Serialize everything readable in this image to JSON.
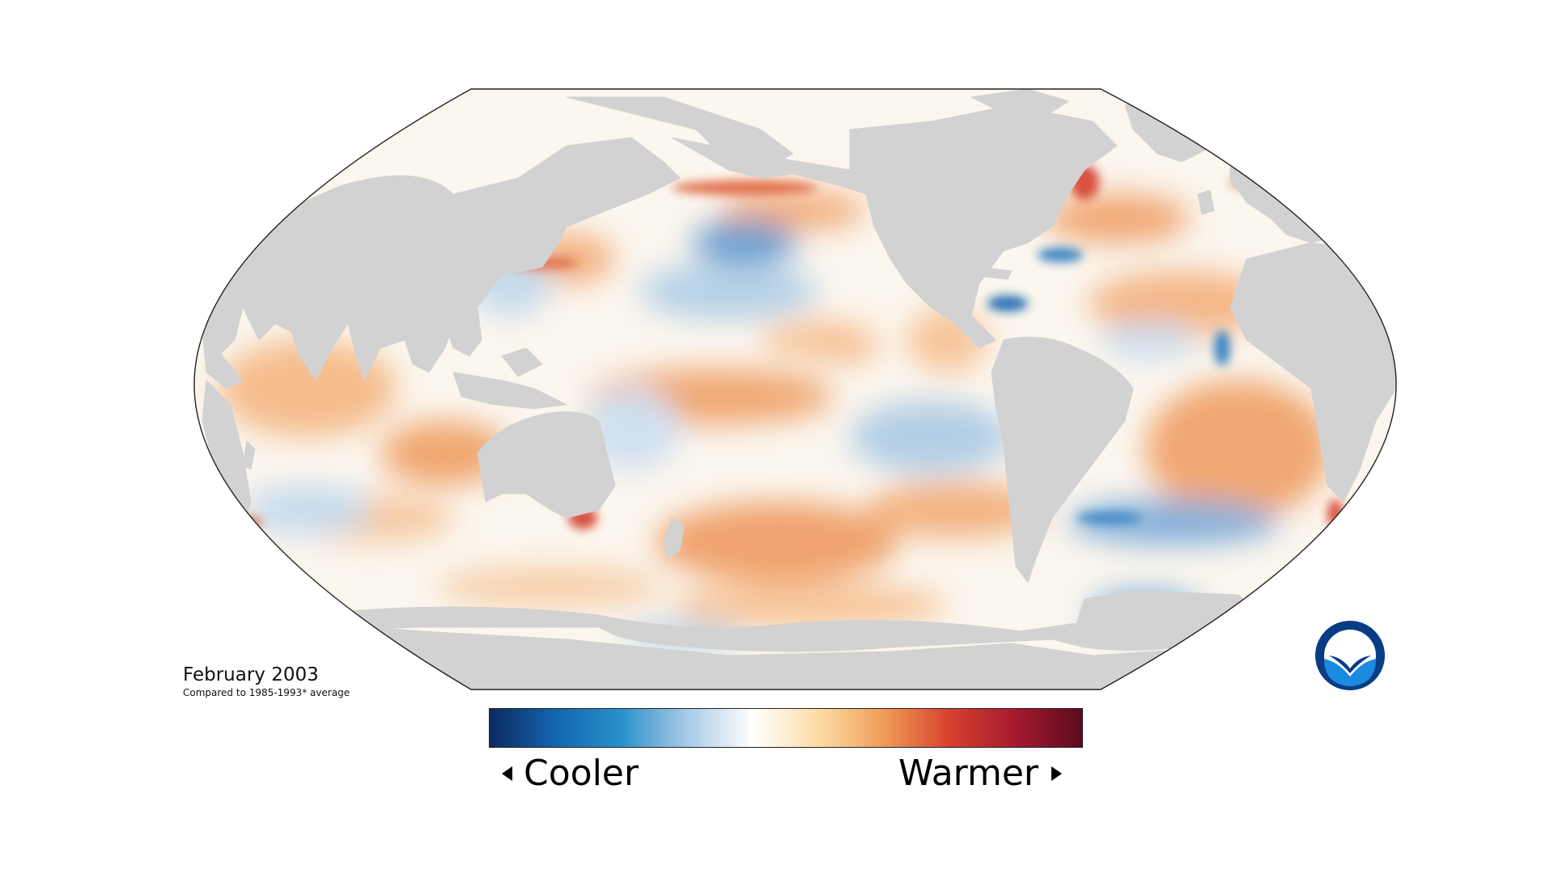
{
  "caption": {
    "date": "February 2003",
    "subtitle": "Compared to 1985-1993* average"
  },
  "legend": {
    "cooler_label": "Cooler",
    "warmer_label": "Warmer",
    "gradient_colors": [
      "#0b2b62",
      "#1466ae",
      "#2a91cd",
      "#a9cbe6",
      "#ffffff",
      "#fddca4",
      "#f19a55",
      "#d6402f",
      "#a31a2d",
      "#5e0a20"
    ]
  },
  "logo": {
    "text": "NOAA",
    "ring_color": "#0a3c86",
    "center_color": "#1b8be0"
  },
  "colors": {
    "land": "#d2d2d2",
    "ocean_neutral": "#fbf6ee",
    "warm_anomaly": "#f2a56a",
    "cool_anomaly": "#6fa6d8"
  }
}
